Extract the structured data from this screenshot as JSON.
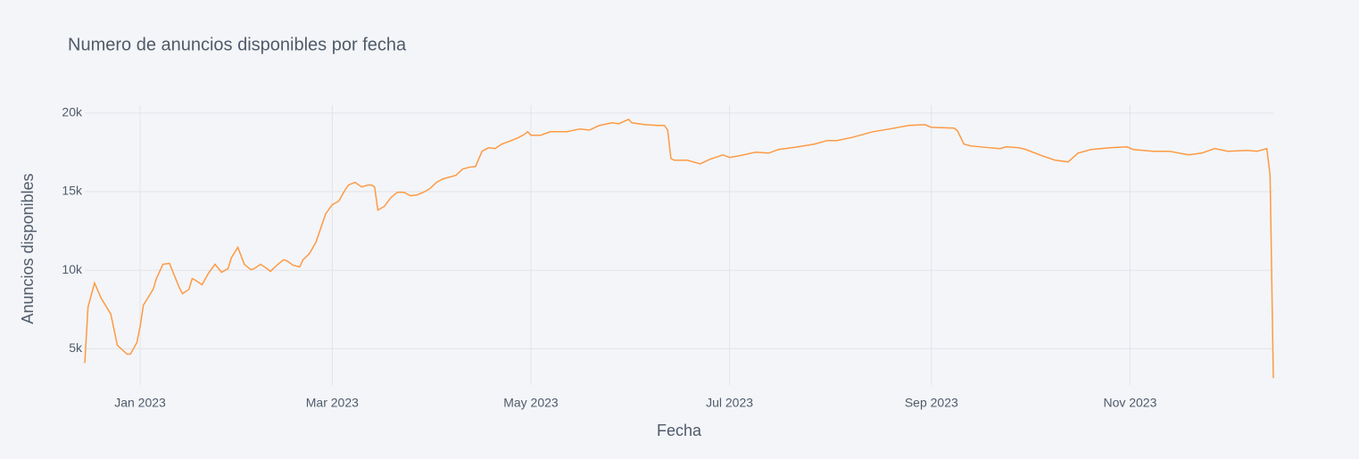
{
  "chart_data": {
    "type": "line",
    "title": "Numero de anuncios disponibles por fecha",
    "x_label": "Fecha",
    "y_label": "Anuncios disponibles",
    "x": [
      "2022-12-15",
      "2022-12-16",
      "2022-12-18",
      "2022-12-20",
      "2022-12-23",
      "2022-12-25",
      "2022-12-28",
      "2022-12-29",
      "2022-12-31",
      "2023-01-01",
      "2023-01-02",
      "2023-01-05",
      "2023-01-06",
      "2023-01-08",
      "2023-01-10",
      "2023-01-11",
      "2023-01-13",
      "2023-01-14",
      "2023-01-16",
      "2023-01-17",
      "2023-01-18",
      "2023-01-20",
      "2023-01-22",
      "2023-01-24",
      "2023-01-26",
      "2023-01-28",
      "2023-01-29",
      "2023-01-31",
      "2023-02-02",
      "2023-02-04",
      "2023-02-05",
      "2023-02-07",
      "2023-02-09",
      "2023-02-10",
      "2023-02-12",
      "2023-02-14",
      "2023-02-15",
      "2023-02-17",
      "2023-02-19",
      "2023-02-20",
      "2023-02-22",
      "2023-02-24",
      "2023-02-27",
      "2023-03-01",
      "2023-03-03",
      "2023-03-05",
      "2023-03-06",
      "2023-03-08",
      "2023-03-10",
      "2023-03-12",
      "2023-03-13",
      "2023-03-14",
      "2023-03-15",
      "2023-03-17",
      "2023-03-19",
      "2023-03-21",
      "2023-03-23",
      "2023-03-25",
      "2023-03-27",
      "2023-03-29",
      "2023-03-31",
      "2023-04-02",
      "2023-04-04",
      "2023-04-08",
      "2023-04-10",
      "2023-04-12",
      "2023-04-14",
      "2023-04-16",
      "2023-04-18",
      "2023-04-20",
      "2023-04-22",
      "2023-04-25",
      "2023-04-27",
      "2023-04-29",
      "2023-04-30",
      "2023-05-01",
      "2023-05-04",
      "2023-05-07",
      "2023-05-12",
      "2023-05-16",
      "2023-05-19",
      "2023-05-22",
      "2023-05-26",
      "2023-05-28",
      "2023-05-31",
      "2023-06-01",
      "2023-06-05",
      "2023-06-09",
      "2023-06-11",
      "2023-06-12",
      "2023-06-13",
      "2023-06-14",
      "2023-06-18",
      "2023-06-22",
      "2023-06-25",
      "2023-06-29",
      "2023-07-01",
      "2023-07-04",
      "2023-07-09",
      "2023-07-13",
      "2023-07-16",
      "2023-07-22",
      "2023-07-27",
      "2023-07-31",
      "2023-08-03",
      "2023-08-08",
      "2023-08-14",
      "2023-08-19",
      "2023-08-25",
      "2023-08-30",
      "2023-09-01",
      "2023-09-08",
      "2023-09-09",
      "2023-09-11",
      "2023-09-13",
      "2023-09-19",
      "2023-09-22",
      "2023-09-24",
      "2023-09-28",
      "2023-09-30",
      "2023-10-05",
      "2023-10-09",
      "2023-10-13",
      "2023-10-16",
      "2023-10-20",
      "2023-10-26",
      "2023-10-31",
      "2023-11-02",
      "2023-11-08",
      "2023-11-13",
      "2023-11-19",
      "2023-11-23",
      "2023-11-27",
      "2023-12-01",
      "2023-12-07",
      "2023-12-10",
      "2023-12-13",
      "2023-12-14",
      "2023-12-15"
    ],
    "series": [
      {
        "name": "Anuncios disponibles",
        "color": "#fd9a44",
        "values": [
          4100,
          7660,
          9190,
          8230,
          7210,
          5230,
          4660,
          4660,
          5400,
          6420,
          7780,
          8790,
          9470,
          10380,
          10440,
          9930,
          8910,
          8510,
          8790,
          9470,
          9360,
          9080,
          9810,
          10380,
          9870,
          10100,
          10780,
          11460,
          10380,
          10040,
          10100,
          10380,
          10100,
          9930,
          10320,
          10660,
          10610,
          10320,
          10210,
          10660,
          11060,
          11790,
          13600,
          14170,
          14400,
          15130,
          15420,
          15590,
          15300,
          15420,
          15420,
          15300,
          13830,
          14060,
          14620,
          14960,
          14960,
          14740,
          14790,
          14960,
          15190,
          15590,
          15810,
          16040,
          16430,
          16550,
          16600,
          17570,
          17790,
          17740,
          18020,
          18250,
          18420,
          18640,
          18810,
          18590,
          18590,
          18810,
          18810,
          18980,
          18920,
          19210,
          19380,
          19320,
          19600,
          19380,
          19260,
          19210,
          19210,
          18920,
          17110,
          17000,
          17000,
          16770,
          17060,
          17340,
          17170,
          17280,
          17510,
          17450,
          17680,
          17850,
          18020,
          18250,
          18250,
          18470,
          18810,
          18980,
          19210,
          19260,
          19090,
          19040,
          18870,
          18020,
          17910,
          17790,
          17740,
          17850,
          17790,
          17680,
          17280,
          17000,
          16890,
          17450,
          17680,
          17790,
          17850,
          17680,
          17570,
          17570,
          17340,
          17450,
          17740,
          17570,
          17620,
          17570,
          17740,
          16040,
          3140
        ]
      }
    ],
    "xlim": [
      "2022-12-15",
      "2023-12-15"
    ],
    "xticks": [
      {
        "value": "2023-01-01",
        "label": "Jan 2023"
      },
      {
        "value": "2023-03-01",
        "label": "Mar 2023"
      },
      {
        "value": "2023-05-01",
        "label": "May 2023"
      },
      {
        "value": "2023-07-01",
        "label": "Jul 2023"
      },
      {
        "value": "2023-09-01",
        "label": "Sep 2023"
      },
      {
        "value": "2023-11-01",
        "label": "Nov 2023"
      }
    ],
    "ylim": [
      2700,
      20500
    ],
    "yticks": [
      {
        "value": 5000,
        "label": "5k"
      },
      {
        "value": 10000,
        "label": "10k"
      },
      {
        "value": 15000,
        "label": "15k"
      },
      {
        "value": 20000,
        "label": "20k"
      }
    ],
    "grid": true
  }
}
